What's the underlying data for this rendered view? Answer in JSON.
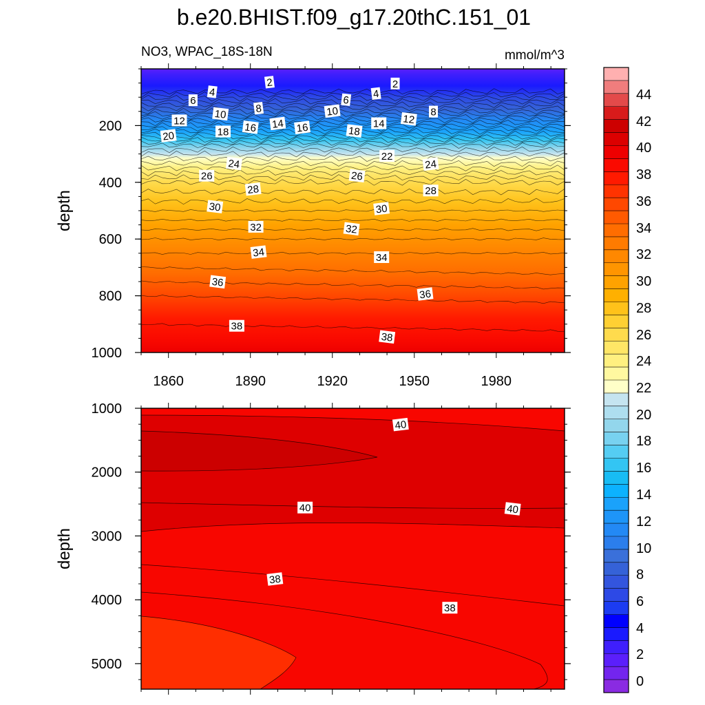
{
  "chart_data": [
    {
      "type": "heatmap",
      "subtype": "filled-contour",
      "title": "b.e20.BHIST.f09_g17.20thC.151_01",
      "left_subtitle": "NO3, WPAC_18S-18N",
      "right_subtitle": "mmol/m^3",
      "xlabel": "",
      "ylabel": "depth",
      "xlim": [
        1850,
        2005
      ],
      "ylim": [
        1000,
        0
      ],
      "x_ticks": [
        1860,
        1890,
        1920,
        1950,
        1980
      ],
      "x_tick_labels": [
        "1860",
        "1890",
        "1920",
        "1950",
        "1980"
      ],
      "y_ticks": [
        200,
        400,
        600,
        800,
        1000
      ],
      "y_tick_labels": [
        "200",
        "400",
        "600",
        "800",
        "1000"
      ],
      "depth_profile": [
        [
          0,
          0
        ],
        [
          80,
          1
        ],
        [
          150,
          7
        ],
        [
          220,
          14
        ],
        [
          270,
          19
        ],
        [
          300,
          21
        ],
        [
          350,
          24
        ],
        [
          400,
          27
        ],
        [
          500,
          30
        ],
        [
          600,
          33
        ],
        [
          700,
          35
        ],
        [
          800,
          37
        ],
        [
          900,
          38
        ],
        [
          1000,
          39
        ]
      ],
      "contour_labels": [
        {
          "text": "2",
          "x": 1897,
          "depth": 48
        },
        {
          "text": "2",
          "x": 1943,
          "depth": 53
        },
        {
          "text": "4",
          "x": 1876,
          "depth": 82
        },
        {
          "text": "4",
          "x": 1936,
          "depth": 88
        },
        {
          "text": "6",
          "x": 1869,
          "depth": 112
        },
        {
          "text": "6",
          "x": 1925,
          "depth": 110
        },
        {
          "text": "8",
          "x": 1893,
          "depth": 140
        },
        {
          "text": "8",
          "x": 1957,
          "depth": 152
        },
        {
          "text": "10",
          "x": 1879,
          "depth": 160
        },
        {
          "text": "10",
          "x": 1920,
          "depth": 150
        },
        {
          "text": "12",
          "x": 1864,
          "depth": 183
        },
        {
          "text": "12",
          "x": 1948,
          "depth": 178
        },
        {
          "text": "14",
          "x": 1900,
          "depth": 194
        },
        {
          "text": "14",
          "x": 1937,
          "depth": 193
        },
        {
          "text": "16",
          "x": 1890,
          "depth": 207
        },
        {
          "text": "16",
          "x": 1909,
          "depth": 208
        },
        {
          "text": "18",
          "x": 1880,
          "depth": 222
        },
        {
          "text": "18",
          "x": 1928,
          "depth": 220
        },
        {
          "text": "20",
          "x": 1860,
          "depth": 237
        },
        {
          "text": "22",
          "x": 1940,
          "depth": 308
        },
        {
          "text": "24",
          "x": 1884,
          "depth": 335
        },
        {
          "text": "24",
          "x": 1956,
          "depth": 337
        },
        {
          "text": "26",
          "x": 1874,
          "depth": 378
        },
        {
          "text": "26",
          "x": 1929,
          "depth": 378
        },
        {
          "text": "28",
          "x": 1891,
          "depth": 425
        },
        {
          "text": "28",
          "x": 1956,
          "depth": 430
        },
        {
          "text": "30",
          "x": 1877,
          "depth": 487
        },
        {
          "text": "30",
          "x": 1938,
          "depth": 494
        },
        {
          "text": "32",
          "x": 1892,
          "depth": 558
        },
        {
          "text": "32",
          "x": 1927,
          "depth": 565
        },
        {
          "text": "34",
          "x": 1893,
          "depth": 647
        },
        {
          "text": "34",
          "x": 1938,
          "depth": 665
        },
        {
          "text": "36",
          "x": 1878,
          "depth": 752
        },
        {
          "text": "36",
          "x": 1954,
          "depth": 795
        },
        {
          "text": "38",
          "x": 1885,
          "depth": 907
        },
        {
          "text": "38",
          "x": 1940,
          "depth": 946
        }
      ]
    },
    {
      "type": "heatmap",
      "subtype": "filled-contour",
      "xlabel": "",
      "ylabel": "depth",
      "xlim": [
        1850,
        2005
      ],
      "ylim": [
        5400,
        1000
      ],
      "y_ticks": [
        1000,
        2000,
        3000,
        4000,
        5000
      ],
      "y_tick_labels": [
        "1000",
        "2000",
        "3000",
        "4000",
        "5000"
      ],
      "contour_labels": [
        {
          "text": "40",
          "x": 1945,
          "depth": 1260
        },
        {
          "text": "40",
          "x": 1910,
          "depth": 2560
        },
        {
          "text": "40",
          "x": 1986,
          "depth": 2580
        },
        {
          "text": "38",
          "x": 1899,
          "depth": 3680
        },
        {
          "text": "38",
          "x": 1963,
          "depth": 4130
        }
      ]
    }
  ],
  "colorbar": {
    "levels": [
      0,
      2,
      4,
      6,
      8,
      10,
      12,
      14,
      16,
      18,
      20,
      22,
      24,
      26,
      28,
      30,
      32,
      34,
      36,
      38,
      40,
      42,
      44
    ],
    "labels": [
      "0",
      "2",
      "4",
      "6",
      "8",
      "10",
      "12",
      "14",
      "16",
      "18",
      "20",
      "22",
      "24",
      "26",
      "28",
      "30",
      "32",
      "34",
      "36",
      "38",
      "40",
      "42",
      "44"
    ],
    "colors": [
      "#8a2be2",
      "#7325ee",
      "#5b1ffb",
      "#3f1ffc",
      "#1a1afe",
      "#0000ff",
      "#1c3cf2",
      "#2d49e6",
      "#3355de",
      "#3562d8",
      "#3a70da",
      "#2b7eec",
      "#2389f5",
      "#1e95f8",
      "#1aa2fb",
      "#0cb2ff",
      "#18bcf4",
      "#33c5f3",
      "#55cdf3",
      "#78d2f0",
      "#93d6ec",
      "#aedeef",
      "#c5e4f0",
      "#ffffc8",
      "#fff8a0",
      "#fff080",
      "#ffe666",
      "#ffdb4d",
      "#ffd033",
      "#ffc21a",
      "#ffb000",
      "#ffa200",
      "#ff9500",
      "#ff8800",
      "#ff7b00",
      "#ff6d00",
      "#ff5a00",
      "#ff4800",
      "#ff3300",
      "#ff1a00",
      "#fa0a00",
      "#ee0000",
      "#dc0000",
      "#cd0000",
      "#d81b1b",
      "#e34a4a",
      "#f07d7d",
      "#ffb0b0"
    ]
  }
}
